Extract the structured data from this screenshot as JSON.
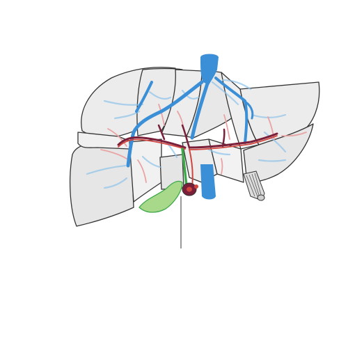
{
  "diagram": {
    "labels": [],
    "colors": {
      "parenchyma": "#e9e9e9",
      "parenchyma_light": "#f2f2f2",
      "outline": "#333333",
      "hepatic_vein": "#3a8fd6",
      "hepatic_vein_light": "#8ec3ea",
      "portal_vein": "#7a1f3a",
      "hepatic_artery": "#d0463f",
      "artery_light": "#e9a3a3",
      "bile_duct": "#3ea84a",
      "gallbladder": "#a8d98a",
      "ligament": "#cfcfcf"
    },
    "icons": {
      "organ": "liver-segments-icon",
      "gallbladder": "gallbladder-icon",
      "vena_cava": "vena-cava-icon"
    }
  }
}
